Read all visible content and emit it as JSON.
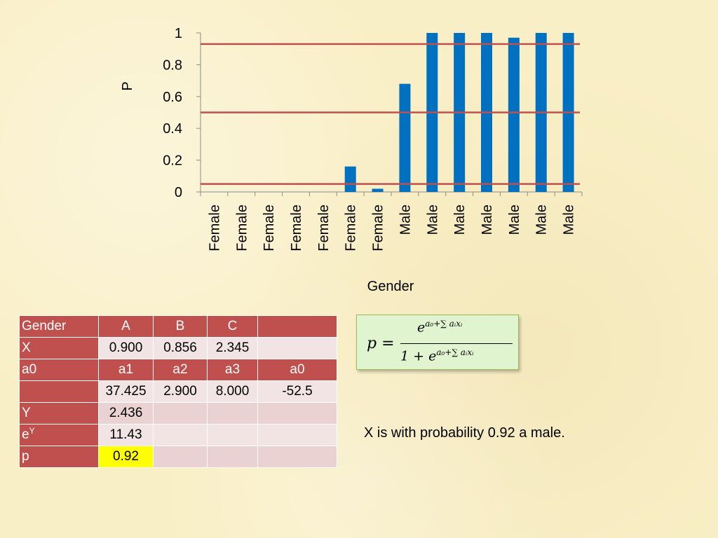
{
  "chart_data": {
    "type": "bar",
    "categories": [
      "Female",
      "Female",
      "Female",
      "Female",
      "Female",
      "Female",
      "Female",
      "Male",
      "Male",
      "Male",
      "Male",
      "Male",
      "Male",
      "Male"
    ],
    "values": [
      0,
      0,
      0,
      0,
      0,
      0.16,
      0.02,
      0.68,
      1.0,
      1.0,
      1.0,
      0.97,
      1.0,
      1.0
    ],
    "reference_lines": [
      0.93,
      0.5,
      0.05
    ],
    "yticks": [
      "0",
      "0.2",
      "0.4",
      "0.6",
      "0.8",
      "1"
    ],
    "xlabel": "Gender",
    "ylabel": "P",
    "ylim": [
      0,
      1
    ],
    "grid": false,
    "colors": {
      "bar": "#0070c0",
      "reference_line": "#c0504d"
    }
  },
  "table": {
    "header": [
      "Gender",
      "A",
      "B",
      "C",
      ""
    ],
    "rows": [
      [
        "X",
        "0.900",
        "0.856",
        "2.345",
        ""
      ],
      [
        "a0",
        "a1",
        "a2",
        "a3",
        "a0"
      ],
      [
        "",
        "37.425",
        "2.900",
        "8.000",
        "-52.5"
      ],
      [
        "Y",
        "2.436",
        "",
        "",
        ""
      ],
      [
        "e",
        "11.43",
        "",
        "",
        ""
      ],
      [
        "p",
        "0.92",
        "",
        "",
        ""
      ]
    ],
    "ey_superscript": "Y",
    "colors": {
      "header": "#c0504d",
      "highlight": "#ffff00"
    }
  },
  "formula": {
    "lhs": "p =",
    "numerator_base": "e",
    "numerator_exponent": "a₀+∑ aᵢxᵢ",
    "denominator_prefix": "1 + e",
    "denominator_exponent": "a₀+∑ aᵢxᵢ"
  },
  "conclusion": "X is with probability 0.92 a male."
}
